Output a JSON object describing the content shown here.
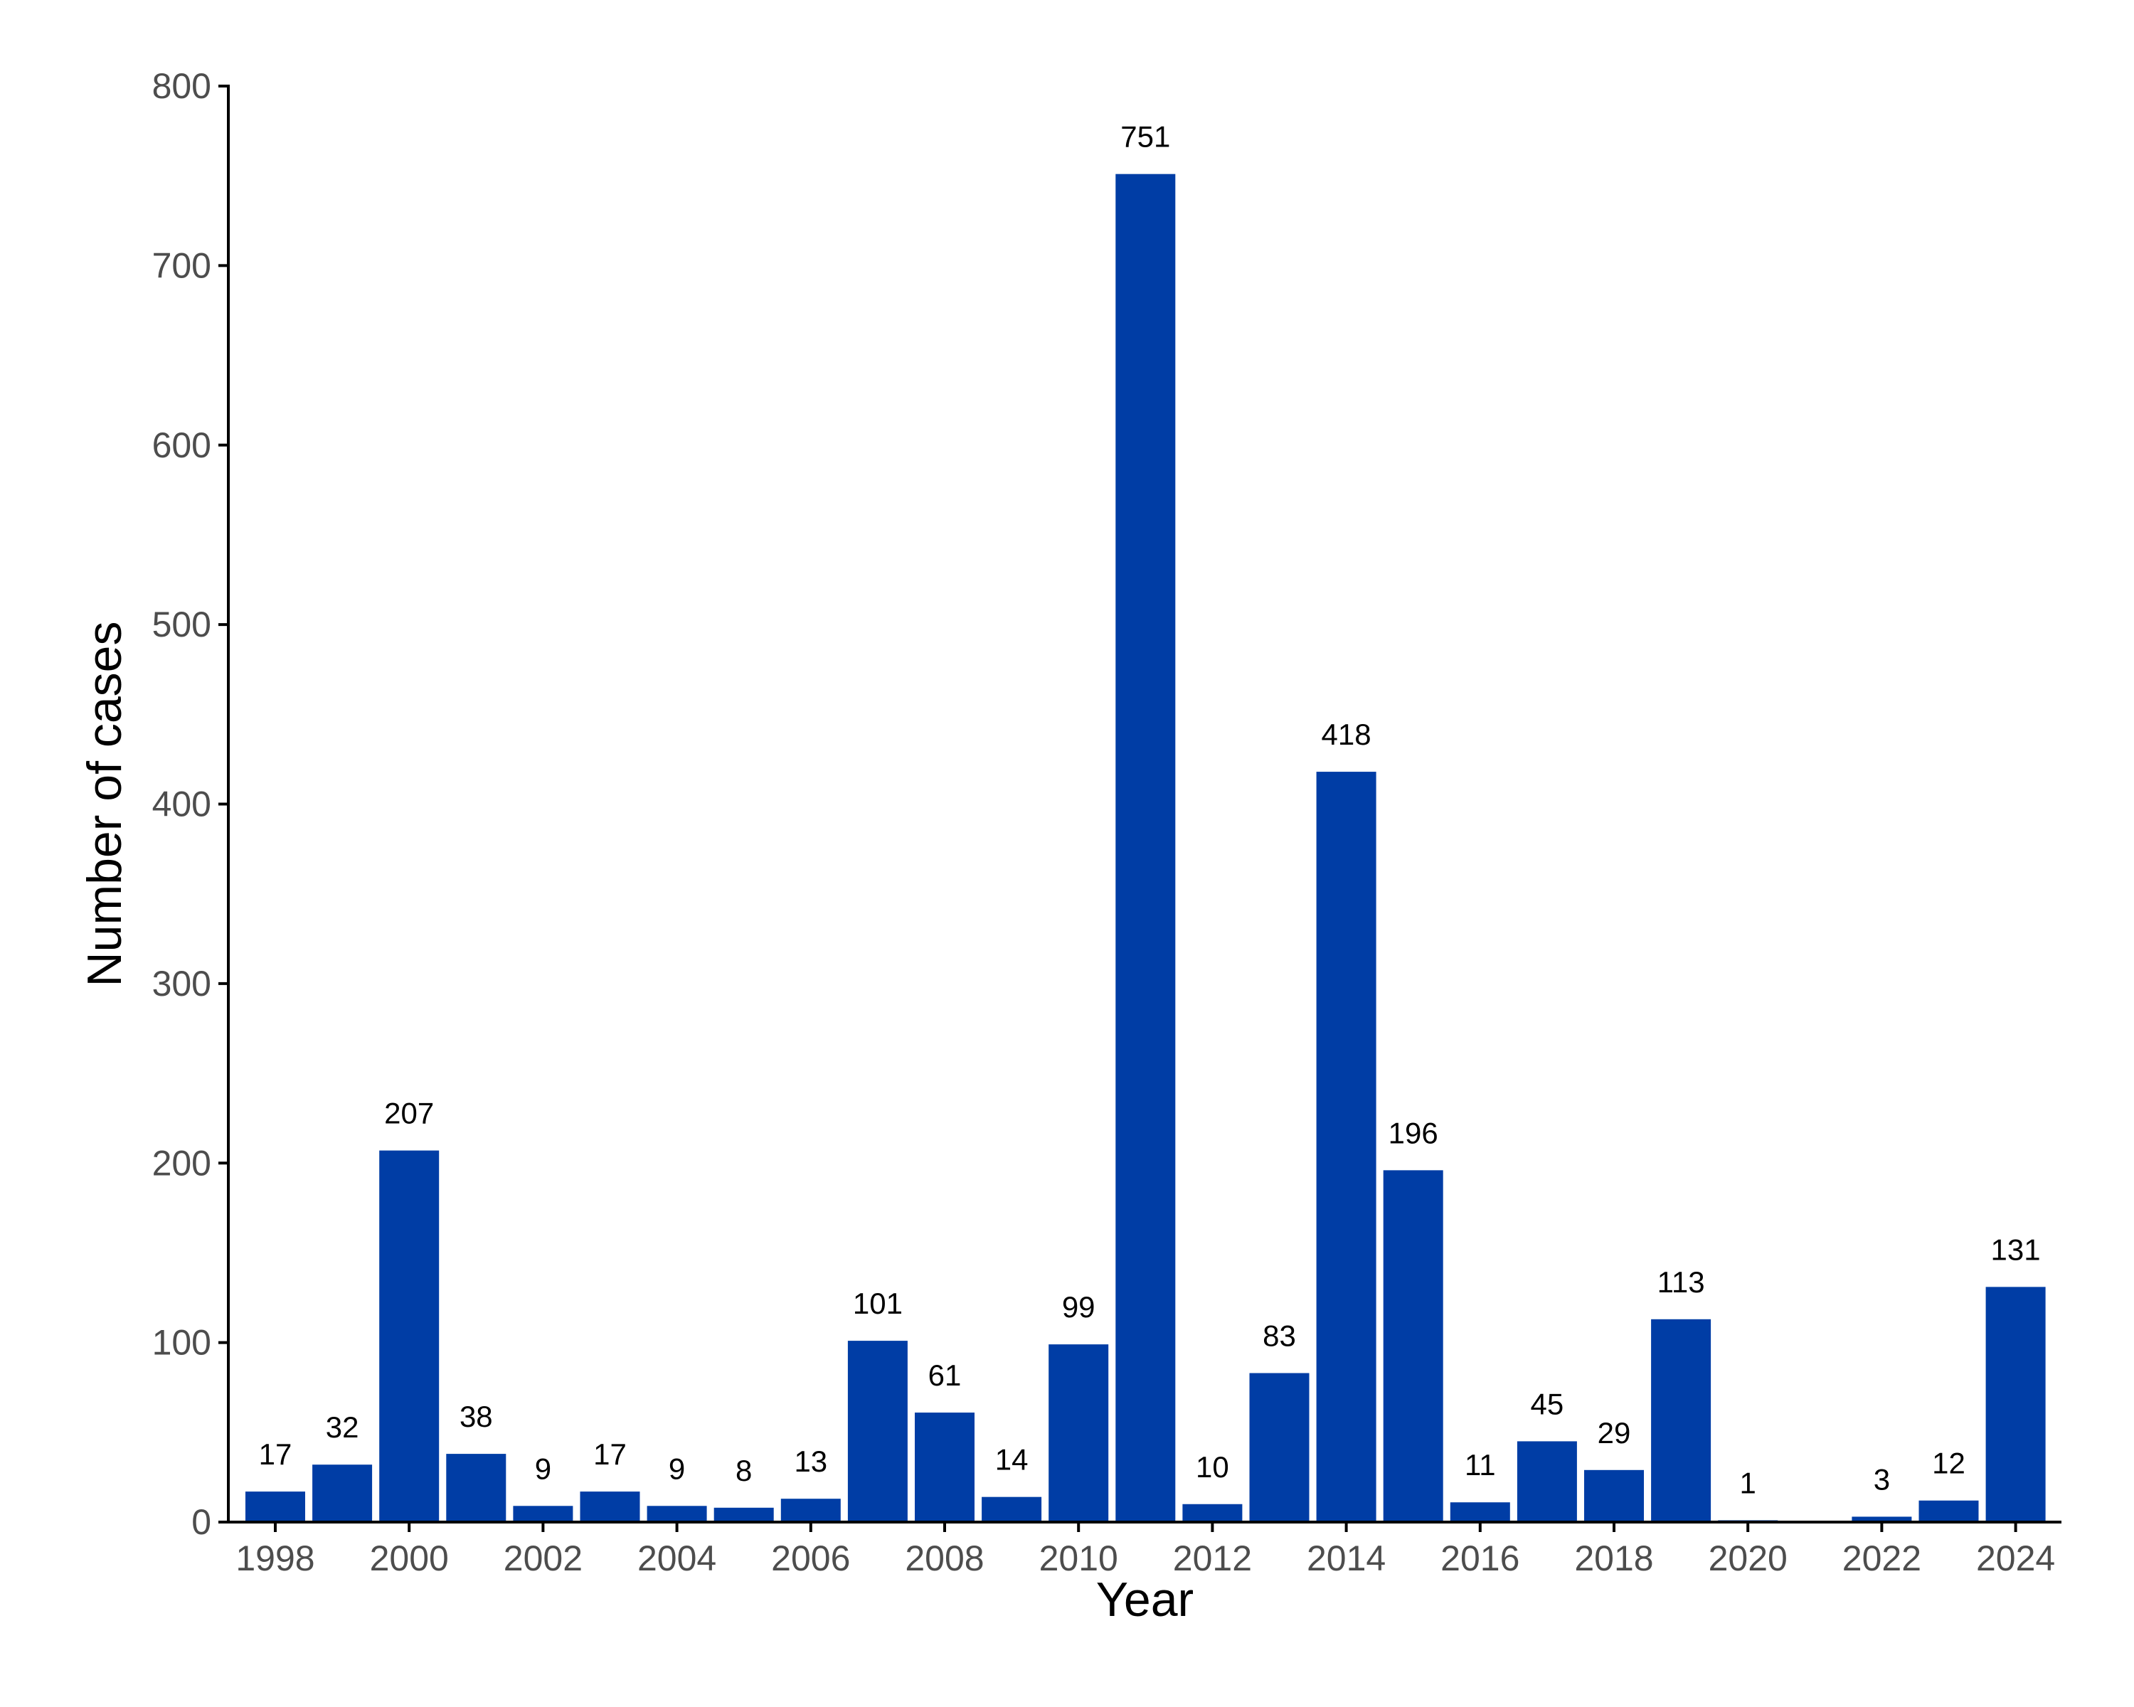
{
  "chart_data": {
    "type": "bar",
    "title": "",
    "xlabel": "Year",
    "ylabel": "Number of cases",
    "categories": [
      1998,
      1999,
      2000,
      2001,
      2002,
      2003,
      2004,
      2005,
      2006,
      2007,
      2008,
      2009,
      2010,
      2011,
      2012,
      2013,
      2014,
      2015,
      2016,
      2017,
      2018,
      2019,
      2020,
      2021,
      2022,
      2023,
      2024
    ],
    "values": [
      17,
      32,
      207,
      38,
      9,
      17,
      9,
      8,
      13,
      101,
      61,
      14,
      99,
      751,
      10,
      83,
      418,
      196,
      11,
      45,
      29,
      113,
      1,
      0,
      3,
      12,
      131
    ],
    "data_labels": [
      "17",
      "32",
      "207",
      "38",
      "9",
      "17",
      "9",
      "8",
      "13",
      "101",
      "61",
      "14",
      "99",
      "751",
      "10",
      "83",
      "418",
      "196",
      "11",
      "45",
      "29",
      "113",
      "1",
      "",
      "3",
      "12",
      "131"
    ],
    "x_ticks": [
      "1998",
      "2000",
      "2002",
      "2004",
      "2006",
      "2008",
      "2010",
      "2012",
      "2014",
      "2016",
      "2018",
      "2020",
      "2022",
      "2024"
    ],
    "y_ticks": [
      "0",
      "100",
      "200",
      "300",
      "400",
      "500",
      "600",
      "700",
      "800"
    ],
    "ylim": [
      0,
      800
    ],
    "grid": false,
    "legend": "none",
    "bar_color": "#003DA5"
  }
}
